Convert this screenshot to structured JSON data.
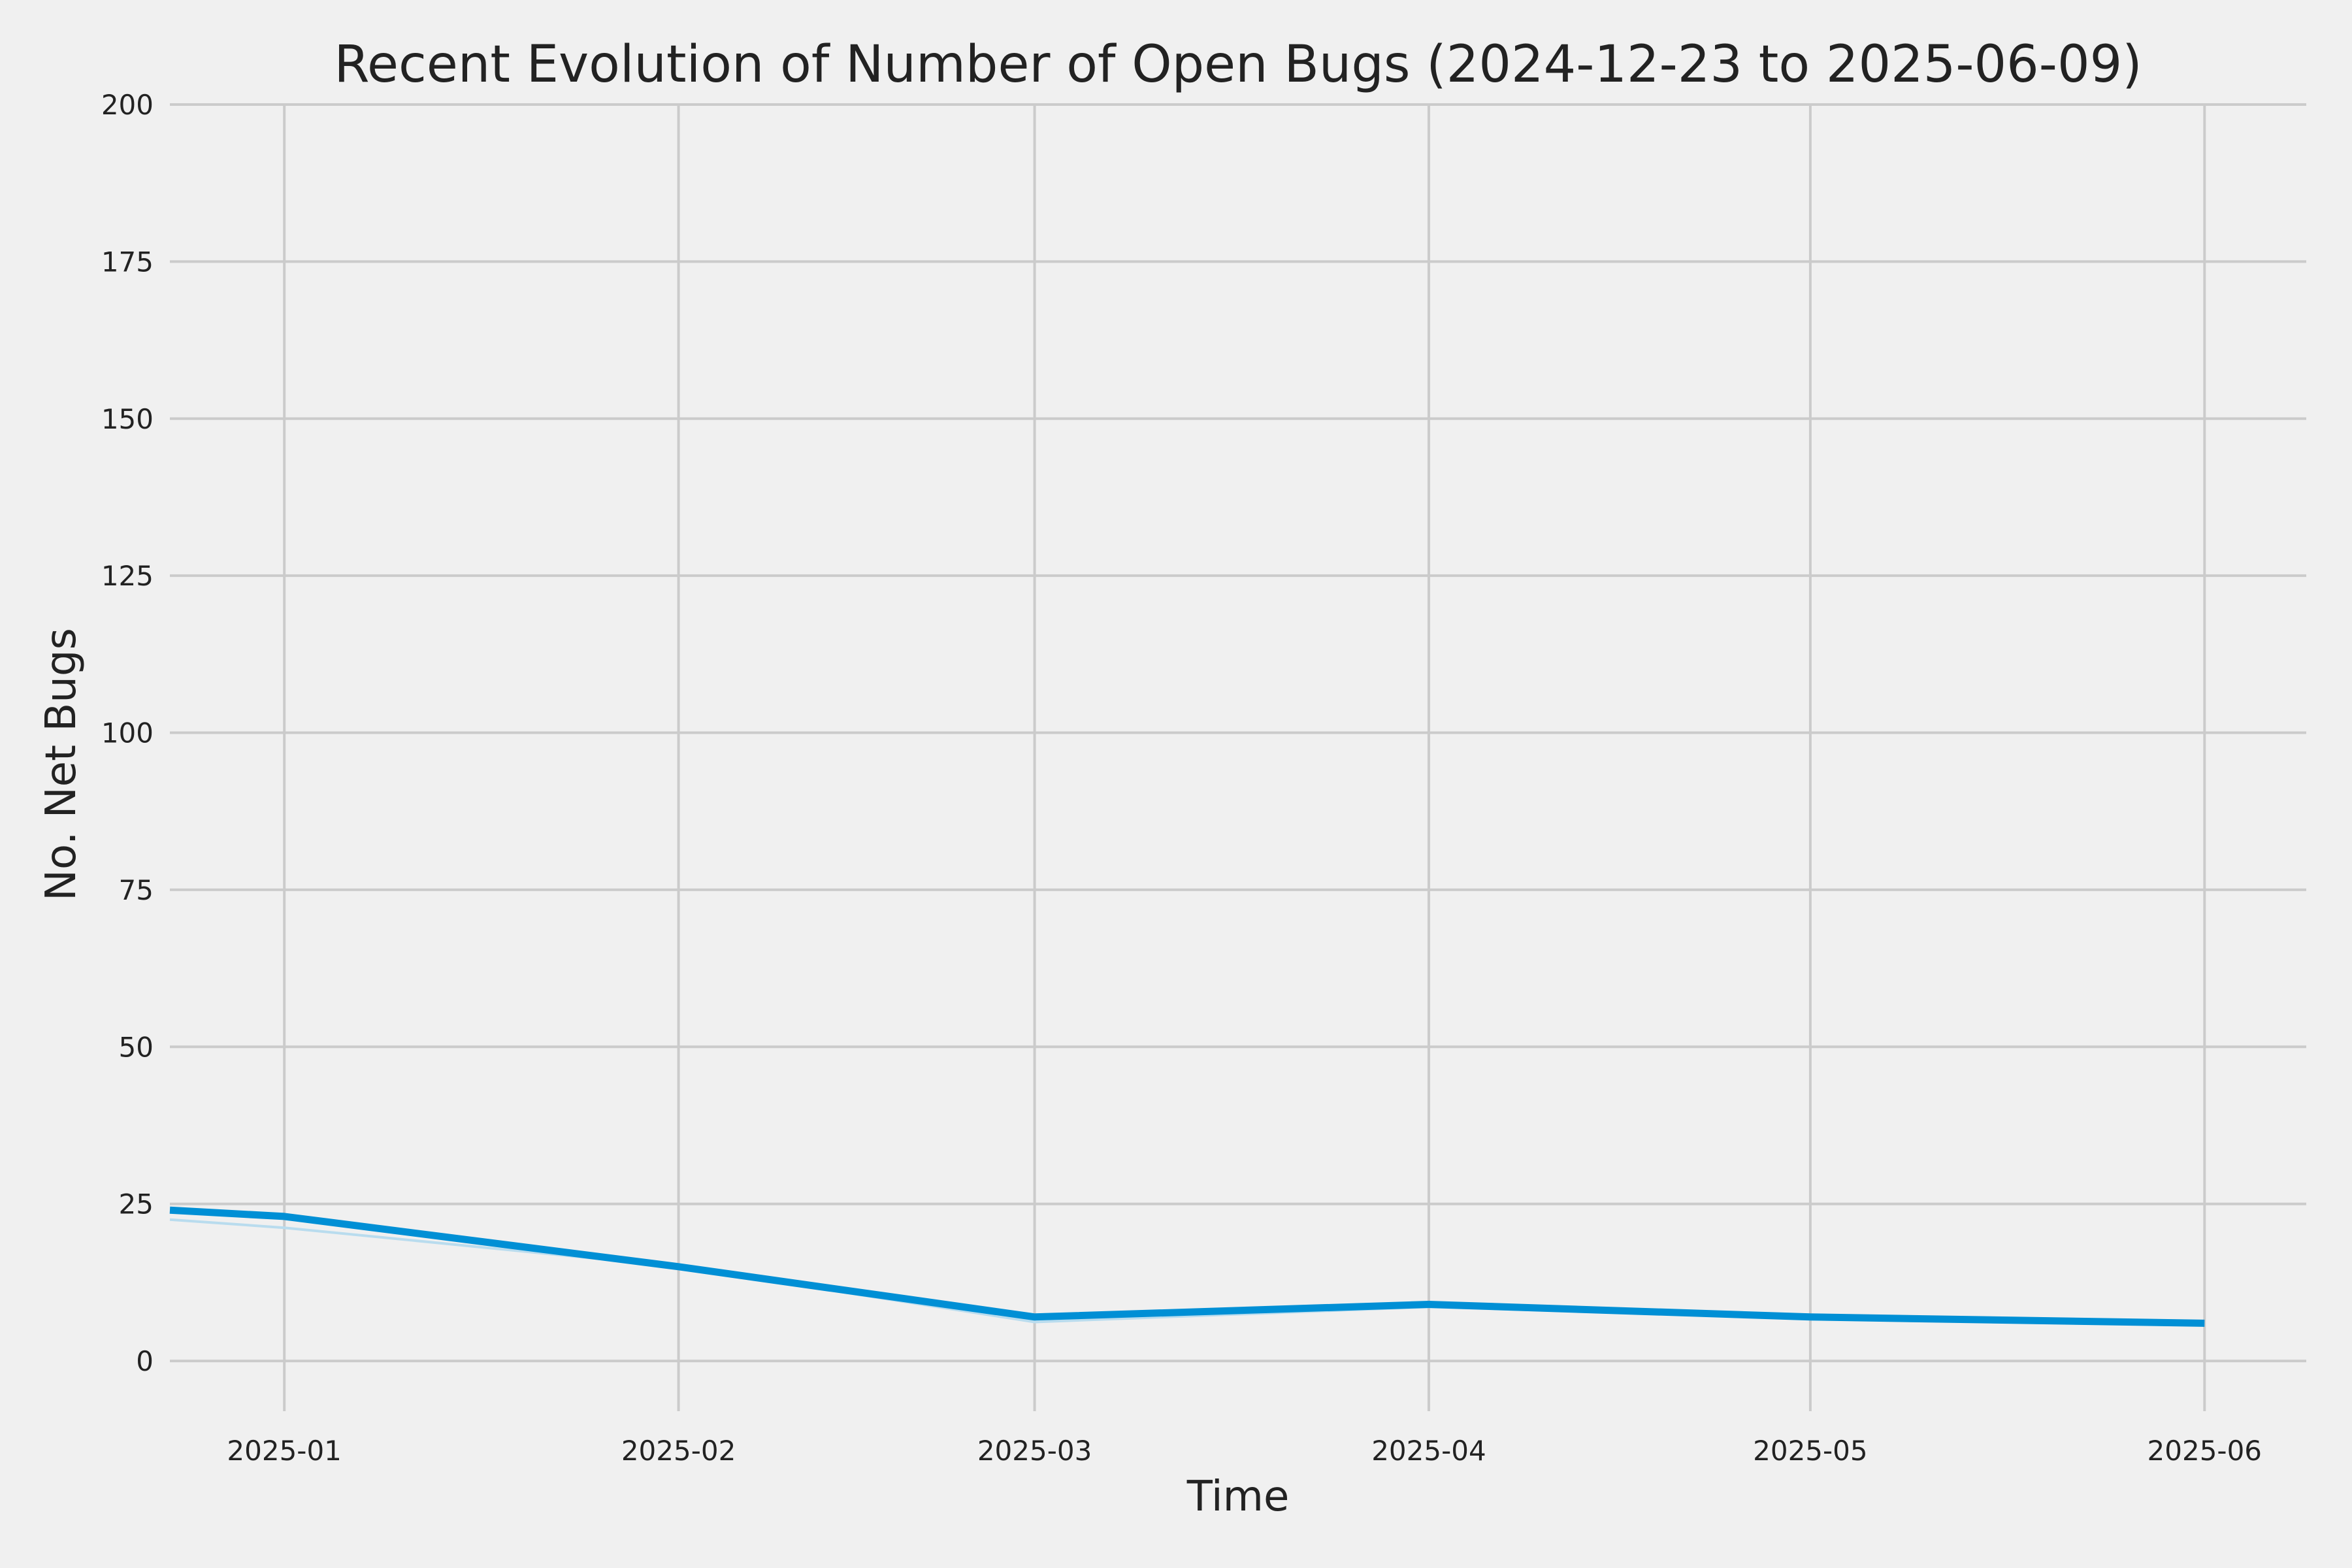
{
  "chart_data": {
    "type": "line",
    "title": "Recent Evolution of Number of Open Bugs (2024-12-23 to 2025-06-09)",
    "xlabel": "Time",
    "ylabel": "No. Net Bugs",
    "xlim": [
      "2024-12-23",
      "2025-06-09"
    ],
    "ylim": [
      -8,
      200
    ],
    "grid": true,
    "x_ticks": [
      "2025-01",
      "2025-02",
      "2025-03",
      "2025-04",
      "2025-05",
      "2025-06"
    ],
    "y_ticks": [
      0,
      25,
      50,
      75,
      100,
      125,
      150,
      175,
      200
    ],
    "series": [
      {
        "color": "#008fd5",
        "x": [
          "2024-12-23",
          "2025-01-01",
          "2025-02-01",
          "2025-03-01",
          "2025-04-01",
          "2025-05-01",
          "2025-06-01"
        ],
        "y": [
          24,
          23,
          15,
          7,
          9,
          7,
          6
        ]
      },
      {
        "color": "#b9dcee",
        "x": [
          "2024-12-23",
          "2025-01-01",
          "2025-02-01",
          "2025-03-01",
          "2025-04-01",
          "2025-05-01",
          "2025-06-01"
        ],
        "y": [
          22.5,
          21.2,
          15,
          6.2,
          8.6,
          6.8,
          5.8
        ]
      }
    ]
  }
}
